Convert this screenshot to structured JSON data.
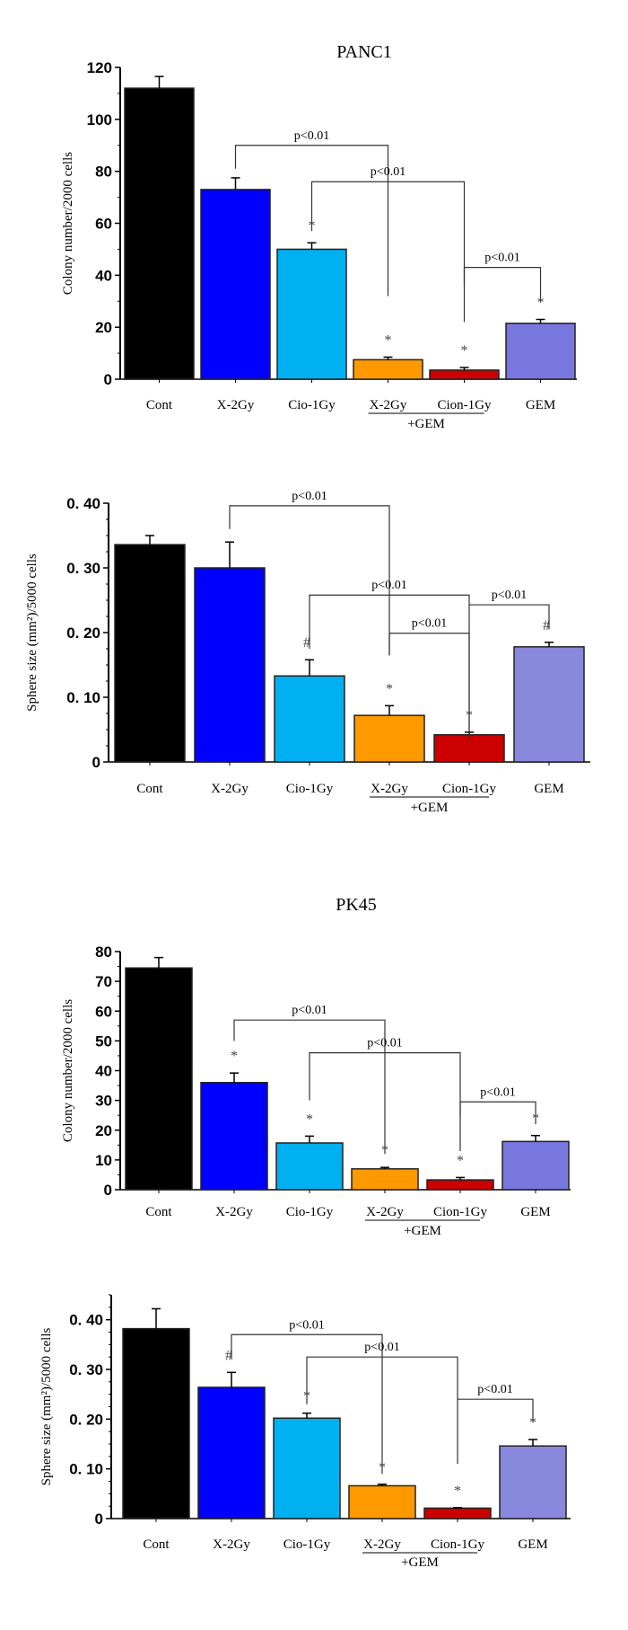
{
  "colors": {
    "Cont": "#000000",
    "X-2Gy": "#0000ff",
    "Cio-1Gy": "#00b0f0",
    "X-2Gy+GEM": "#ff9900",
    "Cion-1Gy+GEM": "#cc0000",
    "GEM_colony": "#7777dd",
    "GEM_sphere": "#8888dd"
  },
  "group_label": "+GEM",
  "chart_data": [
    {
      "type": "bar",
      "title": "PANC1",
      "ylabel": "Colony  number/2000 cells",
      "categories": [
        "Cont",
        "X-2Gy",
        "Cio-1Gy",
        "X-2Gy",
        "Cion-1Gy",
        "GEM"
      ],
      "values": [
        112,
        73,
        50,
        7.5,
        3.5,
        21.5
      ],
      "errors": [
        4.5,
        4.5,
        2.5,
        1,
        1,
        1.5
      ],
      "ylim": [
        0,
        120
      ],
      "yticks": [
        0,
        20,
        40,
        60,
        80,
        100,
        120
      ],
      "ytick_labels": [
        "0",
        "20",
        "40",
        "60",
        "80",
        "100",
        "120"
      ],
      "markers": [
        "",
        "",
        "*",
        "*",
        "*",
        "*"
      ],
      "brackets": [
        {
          "from": 1,
          "to": 3,
          "level": 90,
          "from_end": 81,
          "to_end": 32,
          "label": "p<0.01"
        },
        {
          "from": 2,
          "to": 4,
          "level": 76,
          "from_end": 57,
          "to_end": 22,
          "label": "p<0.01"
        },
        {
          "from": 4,
          "to": 5,
          "level": 43,
          "from_end": 36,
          "to_end": 30,
          "label": "p<0.01"
        }
      ]
    },
    {
      "type": "bar",
      "title": "",
      "ylabel": "Sphere  size (mm²)/5000 cells",
      "categories": [
        "Cont",
        "X-2Gy",
        "Cio-1Gy",
        "X-2Gy",
        "Cion-1Gy",
        "GEM"
      ],
      "values": [
        0.336,
        0.3,
        0.133,
        0.072,
        0.042,
        0.178
      ],
      "errors": [
        0.014,
        0.04,
        0.025,
        0.015,
        0.004,
        0.007
      ],
      "ylim": [
        0,
        0.4
      ],
      "yticks": [
        0,
        0.1,
        0.2,
        0.3,
        0.4
      ],
      "ytick_labels": [
        "0",
        "0. 10",
        "0. 20",
        "0. 30",
        "0. 40"
      ],
      "markers": [
        "",
        "",
        "#",
        "*",
        "*",
        "#"
      ],
      "brackets": [
        {
          "from": 1,
          "to": 3,
          "level": 0.396,
          "from_end": 0.36,
          "to_end": 0.165,
          "label": "p<0.01"
        },
        {
          "from": 2,
          "to": 4,
          "level": 0.258,
          "from_end": 0.175,
          "to_end": 0.035,
          "label": "p<0.01"
        },
        {
          "from": 3,
          "to": 4,
          "level": 0.199,
          "from_end": 0.165,
          "to_end": 0.035,
          "label": "p<0.01"
        },
        {
          "from": 4,
          "to": 5,
          "level": 0.243,
          "from_end": 0.243,
          "to_end": 0.205,
          "label": "p<0.01"
        }
      ]
    },
    {
      "type": "bar",
      "title": "PK45",
      "ylabel": "Colony  number/2000 cells",
      "categories": [
        "Cont",
        "X-2Gy",
        "Cio-1Gy",
        "X-2Gy",
        "Cion-1Gy",
        "GEM"
      ],
      "values": [
        74.5,
        36,
        15.7,
        7,
        3.3,
        16.2
      ],
      "errors": [
        3.5,
        3.2,
        2.3,
        0.5,
        0.8,
        2
      ],
      "ylim": [
        0,
        80
      ],
      "yticks": [
        0,
        10,
        20,
        30,
        40,
        50,
        60,
        70,
        80
      ],
      "ytick_labels": [
        "0",
        "10",
        "20",
        "30",
        "40",
        "50",
        "60",
        "70",
        "80"
      ],
      "markers": [
        "",
        "*",
        "*",
        "*",
        "*",
        "*"
      ],
      "brackets": [
        {
          "from": 1,
          "to": 3,
          "level": 57,
          "from_end": 50,
          "to_end": 12,
          "label": "p<0.01"
        },
        {
          "from": 2,
          "to": 4,
          "level": 46,
          "from_end": 30,
          "to_end": 13,
          "label": "p<0.01"
        },
        {
          "from": 4,
          "to": 5,
          "level": 29.5,
          "from_end": 25,
          "to_end": 22,
          "label": "p<0.01"
        }
      ]
    },
    {
      "type": "bar",
      "title": "",
      "ylabel": "Sphere  size (mm²)/5000 cells",
      "categories": [
        "Cont",
        "X-2Gy",
        "Cio-1Gy",
        "X-2Gy",
        "Cion-1Gy",
        "GEM"
      ],
      "values": [
        0.382,
        0.264,
        0.202,
        0.066,
        0.021,
        0.146
      ],
      "errors": [
        0.04,
        0.03,
        0.01,
        0.003,
        0.001,
        0.013
      ],
      "ylim": [
        0,
        0.45
      ],
      "yticks": [
        0,
        0.1,
        0.2,
        0.3,
        0.4
      ],
      "ytick_labels": [
        "0",
        "0. 10",
        "0. 20",
        "0. 30",
        "0. 40"
      ],
      "markers": [
        "",
        "#",
        "*",
        "*",
        "*",
        "*"
      ],
      "brackets": [
        {
          "from": 1,
          "to": 3,
          "level": 0.37,
          "from_end": 0.32,
          "to_end": 0.09,
          "label": "p<0.01"
        },
        {
          "from": 2,
          "to": 4,
          "level": 0.325,
          "from_end": 0.23,
          "to_end": 0.11,
          "label": "p<0.01"
        },
        {
          "from": 4,
          "to": 5,
          "level": 0.24,
          "from_end": 0.24,
          "to_end": 0.195,
          "label": "p<0.01"
        }
      ]
    }
  ]
}
